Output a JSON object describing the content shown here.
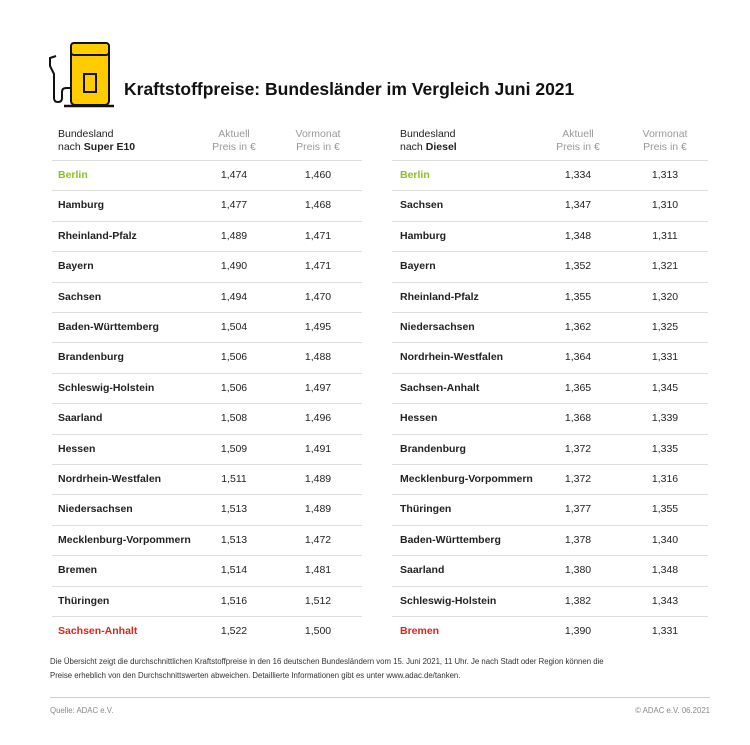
{
  "header": {
    "title": "Kraftstoffpreise: Bundesländer im Vergleich Juni 2021"
  },
  "tables": [
    {
      "col_name_line1": "Bundesland",
      "col_name_prefix": "nach",
      "fuel": "Super E10",
      "col_current_line1": "Aktuell",
      "col_current_line2": "Preis in €",
      "col_prev_line1": "Vormonat",
      "col_prev_line2": "Preis in €",
      "rows": [
        [
          "Berlin",
          "1,474",
          "1,460"
        ],
        [
          "Hamburg",
          "1,477",
          "1,468"
        ],
        [
          "Rheinland-Pfalz",
          "1,489",
          "1,471"
        ],
        [
          "Bayern",
          "1,490",
          "1,471"
        ],
        [
          "Sachsen",
          "1,494",
          "1,470"
        ],
        [
          "Baden-Württemberg",
          "1,504",
          "1,495"
        ],
        [
          "Brandenburg",
          "1,506",
          "1,488"
        ],
        [
          "Schleswig-Holstein",
          "1,506",
          "1,497"
        ],
        [
          "Saarland",
          "1,508",
          "1,496"
        ],
        [
          "Hessen",
          "1,509",
          "1,491"
        ],
        [
          "Nordrhein-Westfalen",
          "1,511",
          "1,489"
        ],
        [
          "Niedersachsen",
          "1,513",
          "1,489"
        ],
        [
          "Mecklenburg-Vorpommern",
          "1,513",
          "1,472"
        ],
        [
          "Bremen",
          "1,514",
          "1,481"
        ],
        [
          "Thüringen",
          "1,516",
          "1,512"
        ],
        [
          "Sachsen-Anhalt",
          "1,522",
          "1,500"
        ]
      ]
    },
    {
      "col_name_line1": "Bundesland",
      "col_name_prefix": "nach",
      "fuel": "Diesel",
      "col_current_line1": "Aktuell",
      "col_current_line2": "Preis in €",
      "col_prev_line1": "Vormonat",
      "col_prev_line2": "Preis in €",
      "rows": [
        [
          "Berlin",
          "1,334",
          "1,313"
        ],
        [
          "Sachsen",
          "1,347",
          "1,310"
        ],
        [
          "Hamburg",
          "1,348",
          "1,311"
        ],
        [
          "Bayern",
          "1,352",
          "1,321"
        ],
        [
          "Rheinland-Pfalz",
          "1,355",
          "1,320"
        ],
        [
          "Niedersachsen",
          "1,362",
          "1,325"
        ],
        [
          "Nordrhein-Westfalen",
          "1,364",
          "1,331"
        ],
        [
          "Sachsen-Anhalt",
          "1,365",
          "1,345"
        ],
        [
          "Hessen",
          "1,368",
          "1,339"
        ],
        [
          "Brandenburg",
          "1,372",
          "1,335"
        ],
        [
          "Mecklenburg-Vorpommern",
          "1,372",
          "1,316"
        ],
        [
          "Thüringen",
          "1,377",
          "1,355"
        ],
        [
          "Baden-Württemberg",
          "1,378",
          "1,340"
        ],
        [
          "Saarland",
          "1,380",
          "1,348"
        ],
        [
          "Schleswig-Holstein",
          "1,382",
          "1,343"
        ],
        [
          "Bremen",
          "1,390",
          "1,331"
        ]
      ]
    }
  ],
  "footnote": [
    "Die Übersicht zeigt die durchschnittlichen Kraftstoffpreise in den 16 deutschen Bundesländern vom 15. Juni 2021, 11 Uhr. Je nach Stadt oder Region können die",
    "Preise erheblich von den Durchschnittswerten abweichen. Detaillierte Informationen gibt es unter www.adac.de/tanken."
  ],
  "source": "Quelle: ADAC e.V.",
  "copyright": "© ADAC e.V. 06.2021"
}
